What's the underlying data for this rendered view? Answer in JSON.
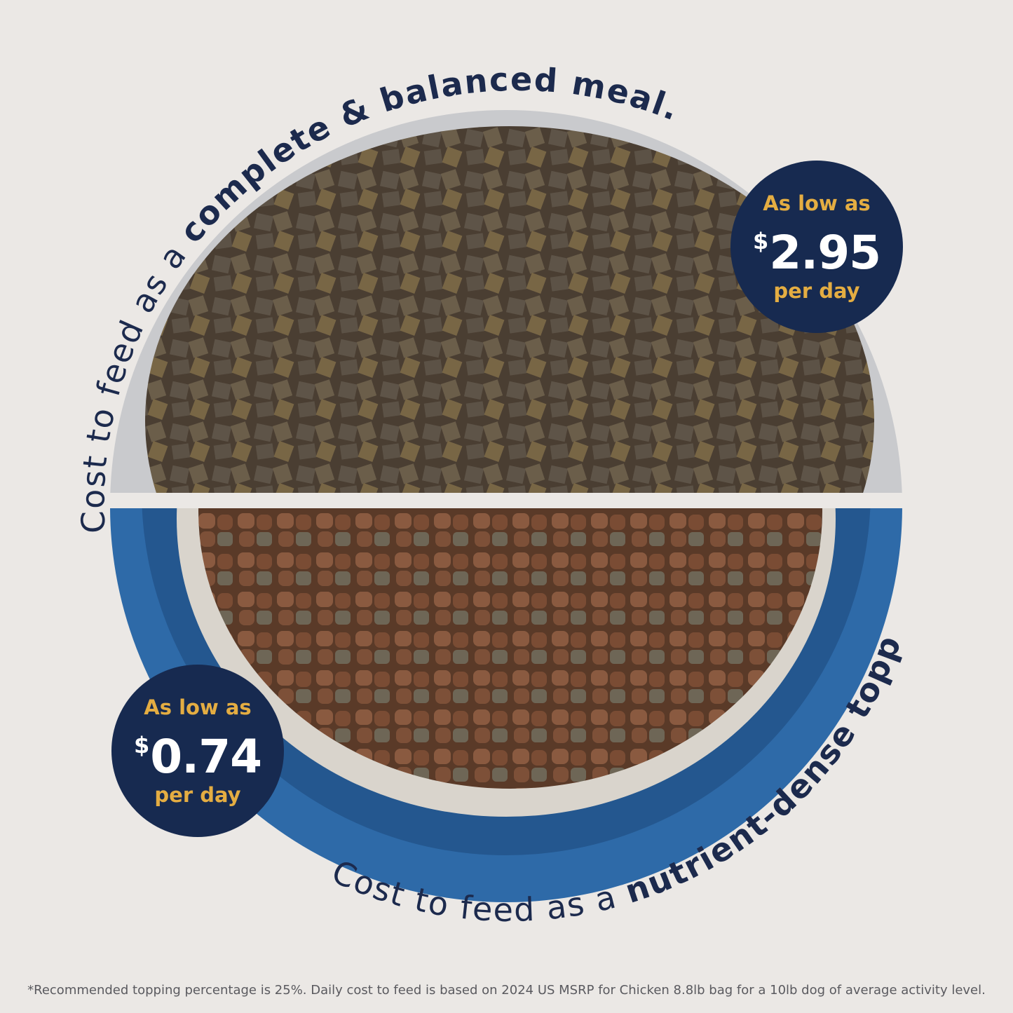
{
  "top_caption": {
    "normal": "Cost to feed as a ",
    "bold": "complete & balanced meal."
  },
  "bottom_caption": {
    "normal": "Cost to feed as a ",
    "bold": "nutrient-dense topper.",
    "mark": "*"
  },
  "badge_meal": {
    "label": "As low as",
    "currency": "$",
    "price": "2.95",
    "unit": "per day"
  },
  "badge_topper": {
    "label": "As low as",
    "currency": "$",
    "price": "0.74",
    "unit": "per day"
  },
  "footnote": "*Recommended topping percentage is 25%. Daily cost to feed is based on 2024 US MSRP for Chicken 8.8lb bag for a 10lb dog of average activity level.",
  "colors": {
    "navy": "#172a50",
    "gold": "#e4ad42",
    "bowl_blue": "#2e6aa8",
    "background": "#ebe8e5"
  }
}
